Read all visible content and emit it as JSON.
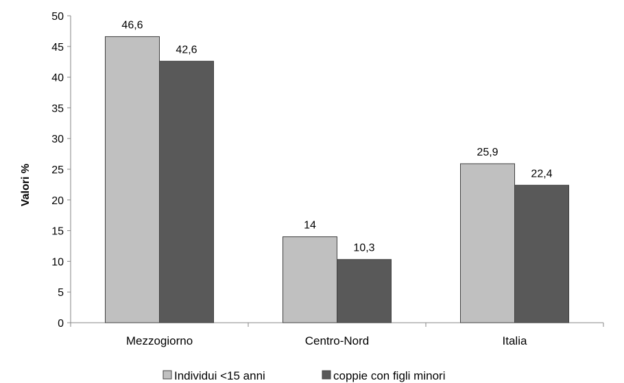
{
  "chart_data": {
    "type": "bar",
    "categories": [
      "Mezzogiorno",
      "Centro-Nord",
      "Italia"
    ],
    "series": [
      {
        "name": "Individui <15 anni",
        "values": [
          46.6,
          14,
          25.9
        ],
        "labels": [
          "46,6",
          "14",
          "25,9"
        ],
        "color": "#c0c0c0"
      },
      {
        "name": "coppie con figli minori",
        "values": [
          42.6,
          10.3,
          22.4
        ],
        "labels": [
          "42,6",
          "10,3",
          "22,4"
        ],
        "color": "#595959"
      }
    ],
    "ylabel": "Valori %",
    "xlabel": "",
    "title": "",
    "ylim": [
      0,
      50
    ],
    "yticks": [
      0,
      5,
      10,
      15,
      20,
      25,
      30,
      35,
      40,
      45,
      50
    ],
    "grid": false,
    "legend_position": "bottom"
  }
}
